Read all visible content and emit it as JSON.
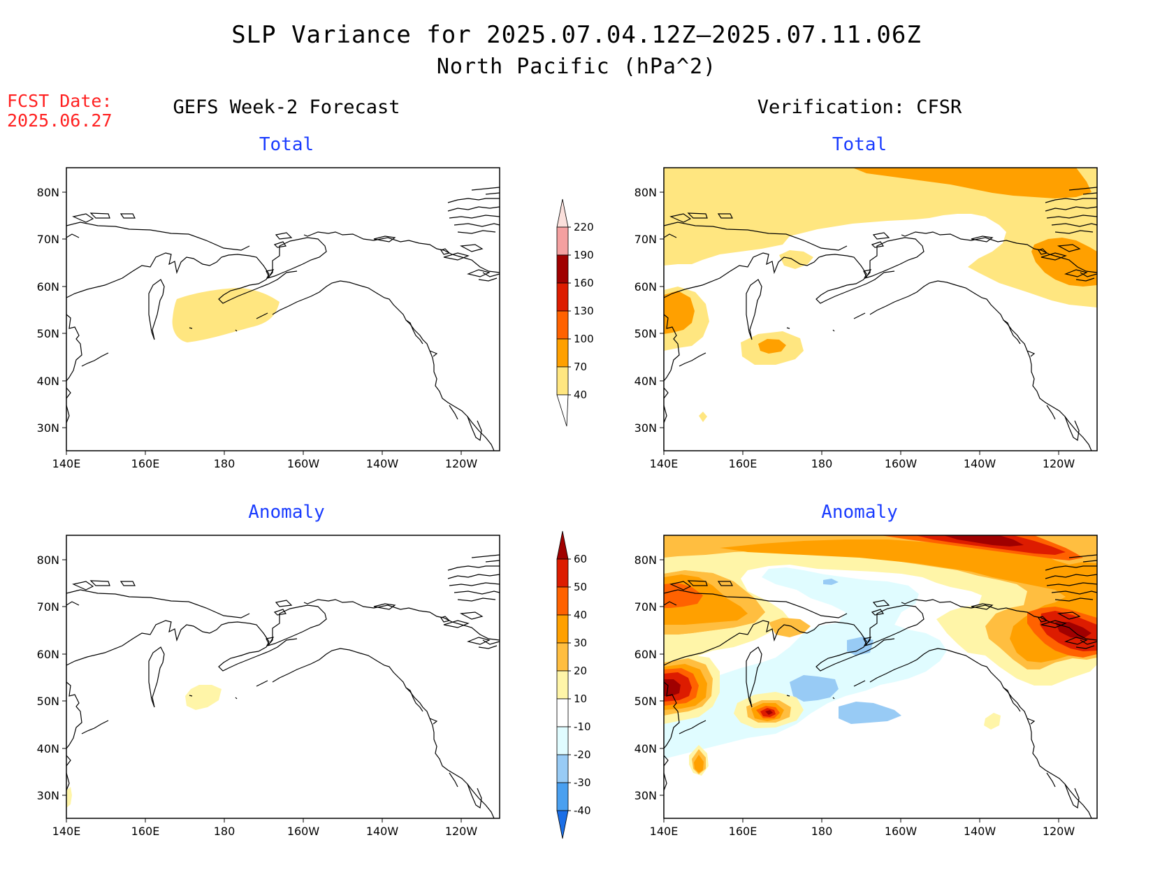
{
  "header": {
    "title": "SLP Variance for 2025.07.04.12Z–2025.07.11.06Z",
    "subtitle": "North Pacific (hPa^2)",
    "fcst_label": "FCST Date:",
    "fcst_date": "2025.06.27"
  },
  "columns": {
    "left_title": "GEFS Week-2 Forecast",
    "right_title": "Verification: CFSR"
  },
  "panels": {
    "total_label": "Total",
    "anomaly_label": "Anomaly"
  },
  "axes": {
    "lon_ticks": [
      "140E",
      "160E",
      "180",
      "160W",
      "140W",
      "120W"
    ],
    "lat_ticks": [
      "80N",
      "70N",
      "60N",
      "50N",
      "40N",
      "30N"
    ]
  },
  "colorbar_total": {
    "labels": [
      "220",
      "190",
      "160",
      "130",
      "100",
      "70",
      "40"
    ],
    "colors": [
      "#fbe0dc",
      "#f4a0a0",
      "#a00000",
      "#dd1c00",
      "#ff6200",
      "#ffa000",
      "#ffe680"
    ]
  },
  "colorbar_anomaly": {
    "labels": [
      "60",
      "50",
      "40",
      "30",
      "20",
      "10",
      "-10",
      "-20",
      "-30",
      "-40"
    ],
    "colors": [
      "#a00000",
      "#dd1c00",
      "#ff6200",
      "#ffa000",
      "#ffbe40",
      "#fff5a8",
      "#ffffff",
      "#e0fcff",
      "#98cbf5",
      "#4aa0f0",
      "#1a6ee6"
    ]
  },
  "fill_colors": {
    "yellow": "#ffe680",
    "orange": "#ffa000",
    "dark_orange": "#ff6200",
    "red": "#dd1c00",
    "dark_red": "#a00000",
    "light_orange": "#ffbe40",
    "pale_yellow": "#fff5a8",
    "pale_cyan": "#e0fcff",
    "light_blue": "#98cbf5"
  }
}
